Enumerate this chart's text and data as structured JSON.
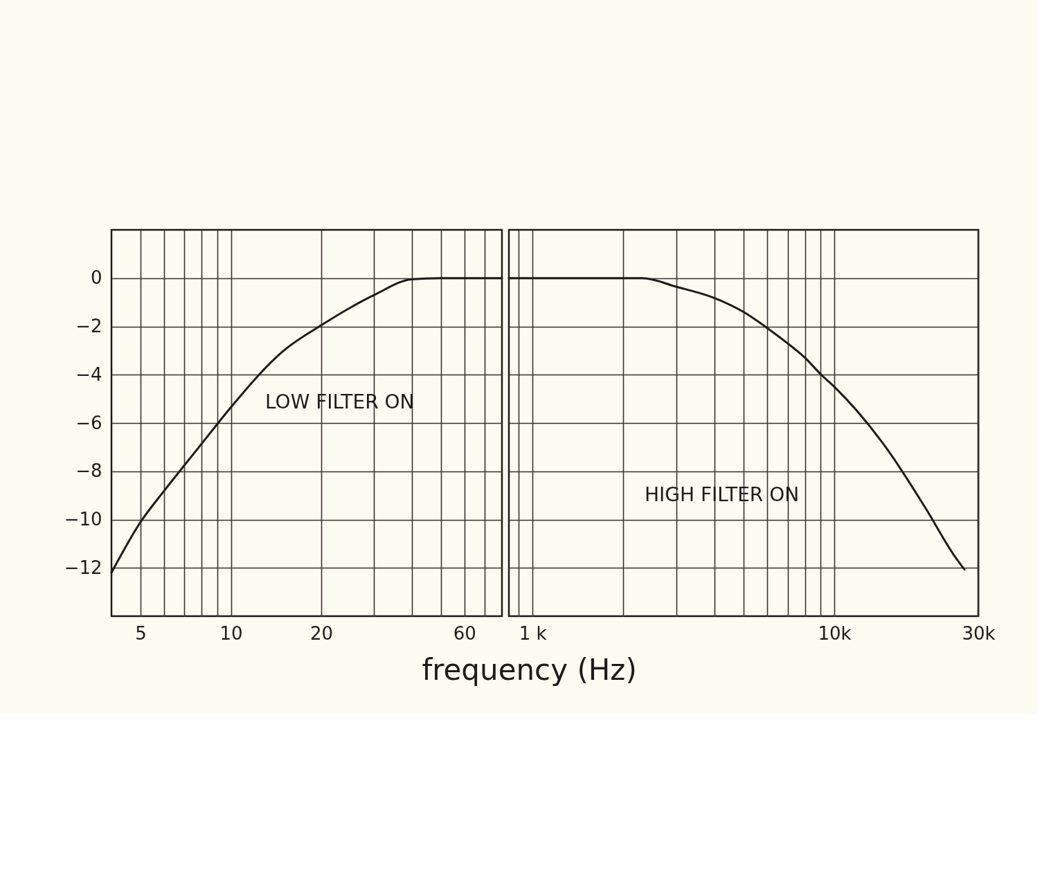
{
  "chart_data": [
    {
      "type": "line",
      "log": "x",
      "grid": true,
      "xlabel": "frequency (Hz)",
      "xlim": [
        4,
        80
      ],
      "ylim": [
        -14,
        2
      ],
      "xticks": [
        5,
        {
          "value": 6,
          "label": null
        },
        {
          "value": 7,
          "label": null
        },
        {
          "value": 8,
          "label": null
        },
        {
          "value": 9,
          "label": null
        },
        10,
        20,
        {
          "value": 30,
          "label": null
        },
        {
          "value": 40,
          "label": null
        },
        {
          "value": 50,
          "label": null
        },
        60,
        {
          "value": 70,
          "label": null
        }
      ],
      "yticks": [
        -12,
        -10,
        -8,
        -6,
        -4,
        -2,
        0
      ],
      "series": [
        {
          "color": "#1e1a1a",
          "x": [
            4,
            5,
            6,
            7,
            8,
            9,
            10,
            15,
            20,
            30,
            40,
            50,
            80
          ],
          "values": [
            -12.2,
            -10.1,
            -8.8,
            -7.75,
            -6.85,
            -6.05,
            -5.35,
            -3.0,
            -1.95,
            -0.7,
            -0.05,
            0,
            0
          ]
        }
      ],
      "annotations": [
        "LOW FILTER ON"
      ]
    },
    {
      "type": "line",
      "log": "x",
      "grid": true,
      "tick_labels": "x",
      "xlim": [
        835,
        30000
      ],
      "ylim": [
        -14,
        2
      ],
      "xticks": [
        {
          "value": 900,
          "label": null
        },
        {
          "value": 1000,
          "label": "1 k"
        },
        {
          "value": 2000,
          "label": null
        },
        {
          "value": 3000,
          "label": null
        },
        {
          "value": 4000,
          "label": null
        },
        {
          "value": 5000,
          "label": null
        },
        {
          "value": 6000,
          "label": null
        },
        {
          "value": 7000,
          "label": null
        },
        {
          "value": 8000,
          "label": null
        },
        {
          "value": 9000,
          "label": null
        },
        {
          "value": 10000,
          "label": "10k"
        },
        {
          "value": 30000,
          "label": "30k"
        }
      ],
      "yticks": [
        -12,
        -10,
        -8,
        -6,
        -4,
        -2,
        0
      ],
      "series": [
        {
          "color": "#1e1a1a",
          "x": [
            835,
            1000,
            2000,
            2310,
            3000,
            4000,
            5000,
            6000,
            7000,
            8000,
            9000,
            10000,
            15000,
            20000,
            25000,
            27000
          ],
          "values": [
            0,
            0,
            0,
            0,
            -0.36,
            -0.82,
            -1.4,
            -2.07,
            -2.7,
            -3.3,
            -3.97,
            -4.5,
            -7.1,
            -9.5,
            -11.5,
            -12.07
          ]
        }
      ],
      "annotations": [
        "HIGH FILTER ON"
      ]
    }
  ]
}
